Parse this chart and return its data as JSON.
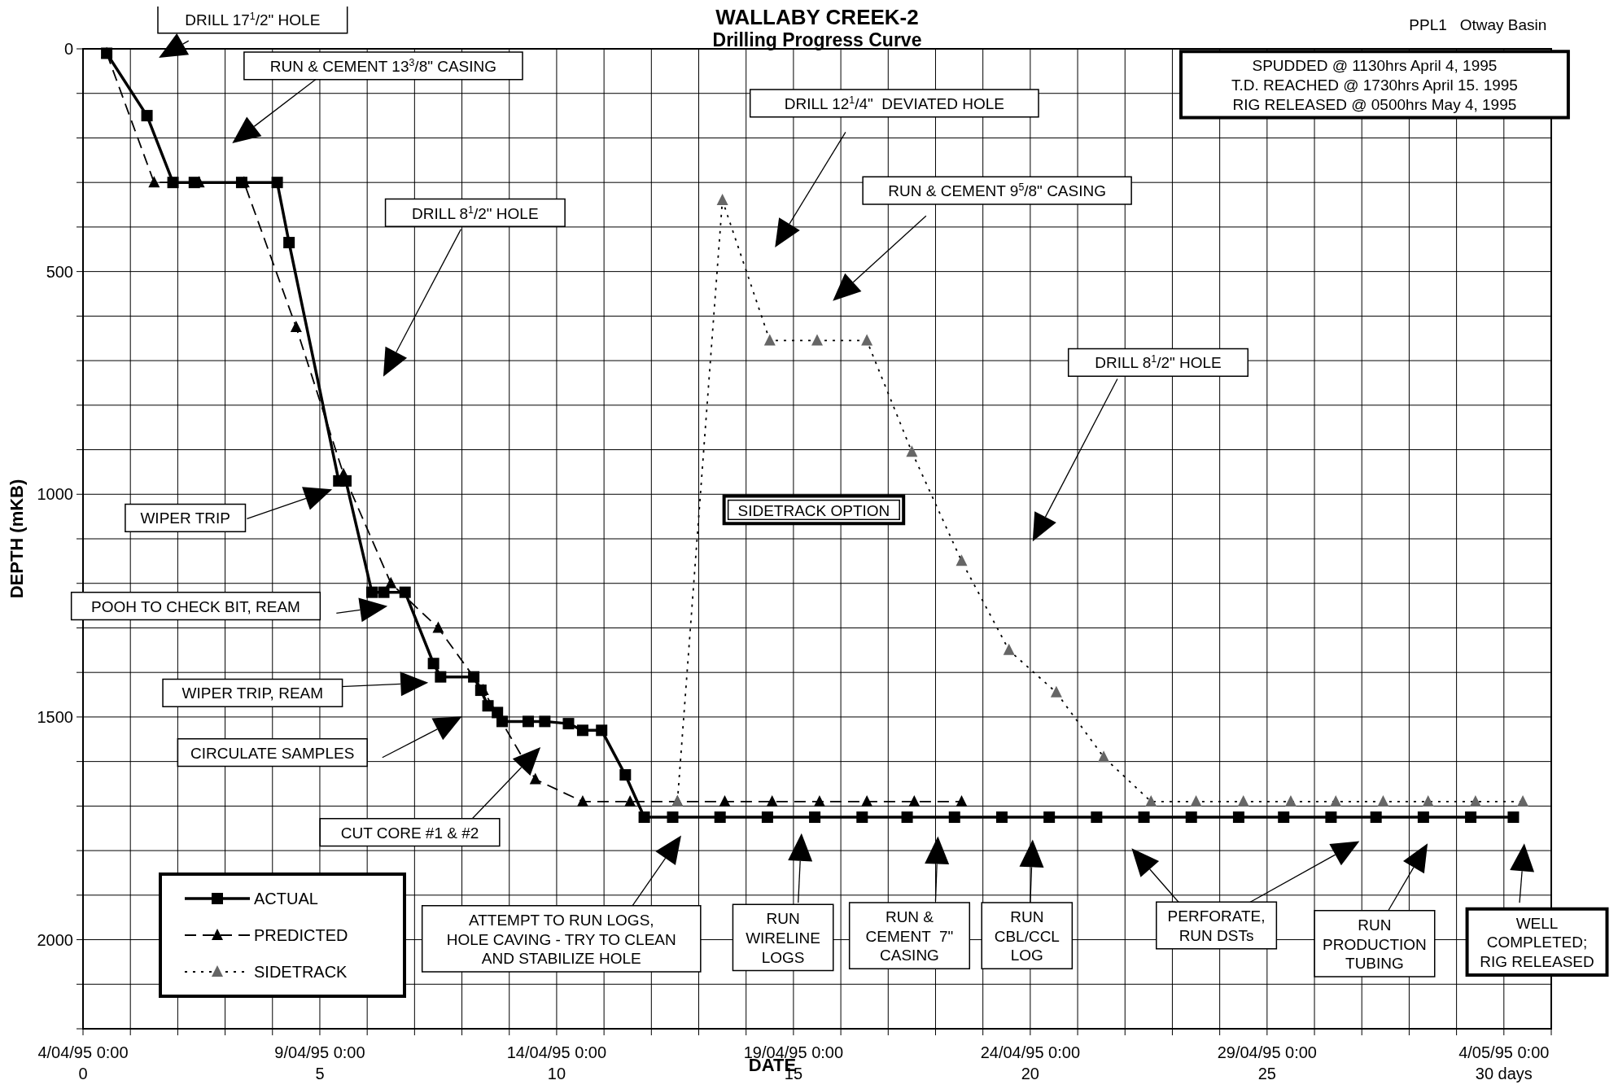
{
  "chart_data": {
    "type": "line",
    "title": "WALLABY CREEK-2",
    "subtitle": "Drilling Progress Curve",
    "xlabel": "DATE",
    "ylabel": "DEPTH (mKB)",
    "xlim": [
      0,
      31
    ],
    "ylim": [
      2200,
      0
    ],
    "xticks": [
      0,
      {
        "value": 1,
        "label": null
      },
      {
        "value": 2,
        "label": null
      },
      {
        "value": 3,
        "label": null
      },
      {
        "value": 4,
        "label": null
      },
      5,
      {
        "value": 6,
        "label": null
      },
      {
        "value": 7,
        "label": null
      },
      {
        "value": 8,
        "label": null
      },
      {
        "value": 9,
        "label": null
      },
      10,
      {
        "value": 11,
        "label": null
      },
      {
        "value": 12,
        "label": null
      },
      {
        "value": 13,
        "label": null
      },
      {
        "value": 14,
        "label": null
      },
      15,
      {
        "value": 16,
        "label": null
      },
      {
        "value": 17,
        "label": null
      },
      {
        "value": 18,
        "label": null
      },
      {
        "value": 19,
        "label": null
      },
      20,
      {
        "value": 21,
        "label": null
      },
      {
        "value": 22,
        "label": null
      },
      {
        "value": 23,
        "label": null
      },
      {
        "value": 24,
        "label": null
      },
      25,
      {
        "value": 26,
        "label": null
      },
      {
        "value": 27,
        "label": null
      },
      {
        "value": 28,
        "label": null
      },
      {
        "value": 29,
        "label": null
      },
      {
        "value": 30,
        "label": "30 days"
      },
      {
        "value": 31,
        "label": null
      }
    ],
    "x2lim": [
      "1995-04-04T00:00",
      "1995-05-05T00:00"
    ],
    "x2ticks": [
      {
        "value": "1995-04-04T00:00",
        "label": "4/04/95 0:00"
      },
      {
        "value": "1995-04-09T00:00",
        "label": "9/04/95 0:00"
      },
      {
        "value": "1995-04-14T00:00",
        "label": "14/04/95 0:00"
      },
      {
        "value": "1995-04-19T00:00",
        "label": "19/04/95 0:00"
      },
      {
        "value": "1995-04-24T00:00",
        "label": "24/04/95 0:00"
      },
      {
        "value": "1995-04-29T00:00",
        "label": "29/04/95 0:00"
      },
      {
        "value": "1995-05-04T00:00",
        "label": "4/05/95 0:00"
      }
    ],
    "yticks": [
      0,
      {
        "value": 100,
        "label": null
      },
      {
        "value": 200,
        "label": null
      },
      {
        "value": 300,
        "label": null
      },
      {
        "value": 400,
        "label": null
      },
      500,
      {
        "value": 600,
        "label": null
      },
      {
        "value": 700,
        "label": null
      },
      {
        "value": 800,
        "label": null
      },
      {
        "value": 900,
        "label": null
      },
      1000,
      {
        "value": 1100,
        "label": null
      },
      {
        "value": 1200,
        "label": null
      },
      {
        "value": 1300,
        "label": null
      },
      {
        "value": 1400,
        "label": null
      },
      1500,
      {
        "value": 1600,
        "label": null
      },
      {
        "value": 1700,
        "label": null
      },
      {
        "value": 1800,
        "label": null
      },
      {
        "value": 1900,
        "label": null
      },
      2000,
      {
        "value": 2100,
        "label": null
      },
      {
        "value": 2200,
        "label": null
      }
    ],
    "grid": true,
    "legend": "bottom left",
    "series": [
      {
        "name": "ACTUAL",
        "color": "#000000",
        "marker": "square",
        "line_style": "solid",
        "x": [
          0.5,
          1.35,
          1.9,
          2.35,
          3.35,
          4.1,
          4.35,
          5.4,
          5.55,
          6.1,
          6.35,
          6.8,
          7.4,
          7.55,
          8.25,
          8.4,
          8.55,
          8.75,
          8.85,
          9.4,
          9.75,
          10.25,
          10.55,
          10.95,
          11.45,
          11.85,
          12.45,
          13.45,
          14.45,
          15.45,
          16.45,
          17.4,
          18.4,
          19.4,
          20.4,
          21.4,
          22.4,
          23.4,
          24.4,
          25.35,
          26.35,
          27.3,
          28.3,
          29.3,
          30.2
        ],
        "values": [
          10,
          150,
          300,
          300,
          300,
          300,
          435,
          970,
          970,
          1220,
          1220,
          1220,
          1380,
          1410,
          1410,
          1440,
          1475,
          1490,
          1510,
          1510,
          1510,
          1515,
          1530,
          1530,
          1630,
          1725,
          1725,
          1725,
          1725,
          1725,
          1725,
          1725,
          1725,
          1725,
          1725,
          1725,
          1725,
          1725,
          1725,
          1725,
          1725,
          1725,
          1725,
          1725,
          1725
        ]
      },
      {
        "name": "PREDICTED",
        "color": "#000000",
        "marker": "triangle",
        "line_style": "dashed",
        "x": [
          0.5,
          1.5,
          2.45,
          3.4,
          4.5,
          5.5,
          6.5,
          7.5,
          8.45,
          9.55,
          10.55,
          11.55,
          12.55,
          13.55,
          14.55,
          15.55,
          16.55,
          17.55,
          18.55
        ],
        "values": [
          10,
          300,
          300,
          300,
          625,
          955,
          1200,
          1300,
          1440,
          1640,
          1690,
          1690,
          1690,
          1690,
          1690,
          1690,
          1690,
          1690,
          1690
        ]
      },
      {
        "name": "SIDETRACK",
        "color": "#666666",
        "marker": "triangle",
        "line_style": "dotted",
        "x": [
          12.55,
          13.5,
          14.5,
          15.5,
          16.55,
          17.5,
          18.55,
          19.55,
          20.55,
          21.55,
          22.55,
          23.5,
          24.5,
          25.5,
          26.45,
          27.45,
          28.4,
          29.4,
          30.4
        ],
        "values": [
          1690,
          340,
          655,
          655,
          655,
          905,
          1150,
          1350,
          1445,
          1590,
          1690,
          1690,
          1690,
          1690,
          1690,
          1690,
          1690,
          1690,
          1690
        ]
      }
    ],
    "annotations": [
      "DRILL 17$^{1}$/2\" HOLE",
      "RUN & CEMENT 13$^{3}$/8\" CASING",
      "DRILL 8$^{1}$/2\" HOLE",
      "DRILL 12$^{1}$/4\"  DEVIATED HOLE",
      "RUN & CEMENT 9$^{5}$/8\" CASING",
      "DRILL 8$^{1}$/2\" HOLE",
      "SIDETRACK OPTION",
      "WIPER TRIP",
      "POOH TO CHECK BIT, REAM",
      "WIPER TRIP, REAM",
      "CIRCULATE SAMPLES",
      "CUT CORE #1 & #2",
      "ATTEMPT TO RUN LOGS,\nHOLE CAVING - TRY TO CLEAN\nAND STABILIZE HOLE",
      "RUN\nWIRELINE\nLOGS",
      "RUN &\nCEMENT  7\"\nCASING",
      "RUN\nCBL/CCL\nLOG",
      "PERFORATE,\nRUN DSTs",
      "RUN\nPRODUCTION\nTUBING",
      "WELL\nCOMPLETED;\nRIG RELEASED",
      "SPUDDED @ 1130hrs April 4, 1995\nT.D. REACHED @ 1730hrs April 15. 1995\nRIG RELEASED @ 0500hrs May 4, 1995",
      "PPL1   Otway Basin"
    ]
  }
}
